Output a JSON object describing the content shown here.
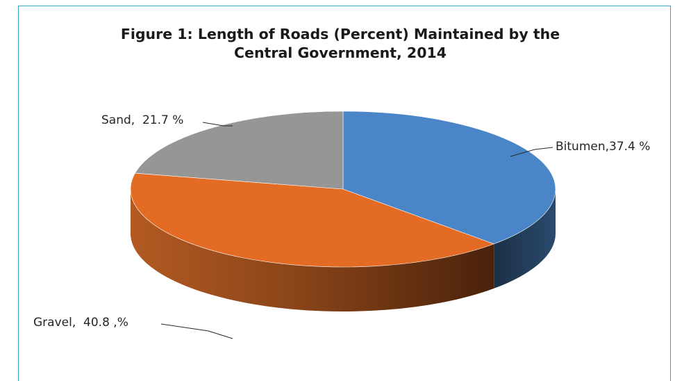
{
  "chart_data": {
    "type": "pie",
    "style": "3d",
    "title_lines": [
      "Figure 1: Length of Roads (Percent) Maintained by the",
      "Central Government, 2014"
    ],
    "slices": [
      {
        "label": "Bitumen",
        "value": 37.4,
        "label_text": "Bitumen,37.4 %",
        "color": "#4a86c7",
        "side_color": "#1f3a5c"
      },
      {
        "label": "Gravel",
        "value": 40.8,
        "label_text": "Gravel,  40.8 ,%",
        "color": "#e36b24",
        "side_color": "#9a4618"
      },
      {
        "label": "Sand",
        "value": 21.7,
        "label_text": "Sand,  21.7 %",
        "color": "#969696",
        "side_color": "#5e5e5e"
      }
    ],
    "legend": "none"
  }
}
